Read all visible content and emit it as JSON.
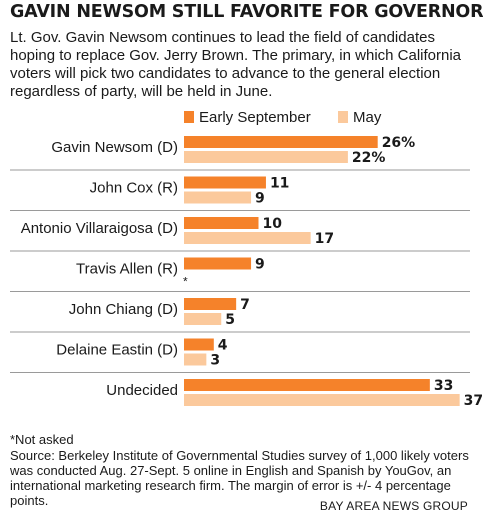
{
  "headline": "GAVIN NEWSOM STILL FAVORITE FOR GOVERNOR",
  "intro": "Lt. Gov. Gavin Newsom continues to lead the field of candidates hoping to replace Gov. Jerry Brown. The primary, in which California voters will pick two candidates to advance to the general election regardless of party, will be held in June.",
  "footnote": "*Not asked",
  "source": "Source: Berkeley Institute of Governmental Studies survey of 1,000 likely voters was conducted Aug. 27-Sept. 5 online in English and Spanish by YouGov, an international marketing research firm. The margin of error is +/- 4 percentage points.",
  "credit": "BAY AREA NEWS GROUP",
  "colors": {
    "early": "#f5822a",
    "may": "#fbc99c",
    "rule": "#9a9a9a"
  },
  "chart_data": {
    "type": "bar",
    "orientation": "horizontal",
    "categories": [
      "Gavin Newsom (D)",
      "John Cox (R)",
      "Antonio Villaraigosa (D)",
      "Travis Allen (R)",
      "John Chiang (D)",
      "Delaine Eastin (D)",
      "Undecided"
    ],
    "series": [
      {
        "name": "Early September",
        "values": [
          26,
          11,
          10,
          9,
          7,
          4,
          33
        ],
        "labels": [
          "26%",
          "11",
          "10",
          "9",
          "7",
          "4",
          "33"
        ]
      },
      {
        "name": "May",
        "values": [
          22,
          9,
          17,
          null,
          5,
          3,
          37
        ],
        "labels": [
          "22%",
          "9",
          "17",
          "*",
          "5",
          "3",
          "37"
        ]
      }
    ],
    "legend": "top",
    "xlim": [
      0,
      37
    ]
  }
}
